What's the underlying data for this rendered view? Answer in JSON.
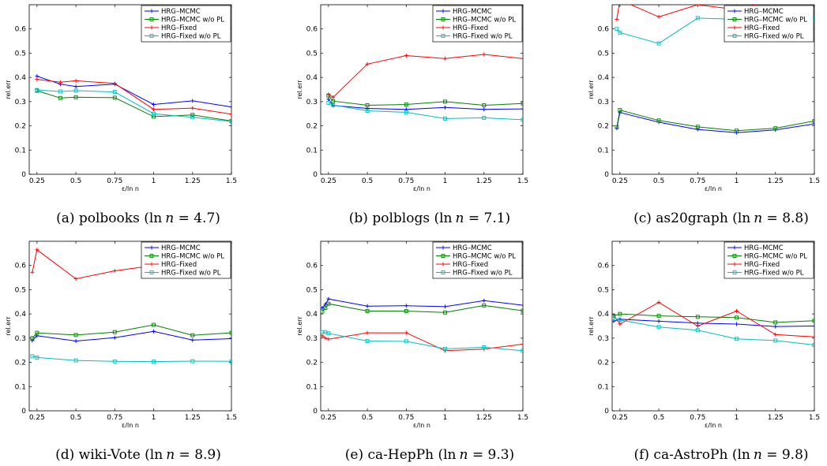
{
  "figure": {
    "legend_labels": [
      "HRG–MCMC",
      "HRG–MCMC w/o PL",
      "HRG–Fixed",
      "HRG–Fixed w/o PL"
    ]
  },
  "chart_data": [
    {
      "type": "line",
      "caption": "(a) polbooks (ln n = 4.7)",
      "caption_parts": {
        "label": "(a) polbooks (",
        "ln": "ln",
        "n": "n",
        "eq": " = 4.7)"
      },
      "xlabel": "ε/ln n",
      "ylabel": "rel.err",
      "xlim": [
        0.2,
        1.5
      ],
      "ylim": [
        0,
        0.7
      ],
      "xticks": [
        "0.25",
        "0.5",
        "0.75",
        "1",
        "1.25",
        "1.5"
      ],
      "yticks": [
        "0",
        "0.1",
        "0.2",
        "0.3",
        "0.4",
        "0.5",
        "0.6"
      ],
      "grid": false,
      "legend_position": "top-right",
      "series": [
        {
          "name": "HRG–MCMC",
          "color": "#0000ff",
          "marker": "plus",
          "x": [
            0.25,
            0.4,
            0.5,
            0.75,
            1.0,
            1.25,
            1.5
          ],
          "y": [
            0.405,
            0.372,
            0.362,
            0.372,
            0.288,
            0.303,
            0.278
          ]
        },
        {
          "name": "HRG–MCMC w/o PL",
          "color": "#008000",
          "marker": "square",
          "x": [
            0.25,
            0.4,
            0.5,
            0.75,
            1.0,
            1.25,
            1.5
          ],
          "y": [
            0.345,
            0.315,
            0.318,
            0.316,
            0.238,
            0.245,
            0.22
          ]
        },
        {
          "name": "HRG–Fixed",
          "color": "#ff0000",
          "marker": "plus",
          "x": [
            0.25,
            0.4,
            0.5,
            0.75,
            1.0,
            1.25,
            1.5
          ],
          "y": [
            0.392,
            0.38,
            0.386,
            0.375,
            0.268,
            0.273,
            0.248
          ]
        },
        {
          "name": "HRG–Fixed w/o PL",
          "color": "#00bfbf",
          "marker": "square",
          "x": [
            0.25,
            0.4,
            0.5,
            0.75,
            1.0,
            1.25,
            1.5
          ],
          "y": [
            0.348,
            0.342,
            0.345,
            0.34,
            0.25,
            0.235,
            0.218
          ]
        }
      ]
    },
    {
      "type": "line",
      "caption": "(b) polblogs (ln n = 7.1)",
      "caption_parts": {
        "label": "(b) polblogs (",
        "ln": "ln",
        "n": "n",
        "eq": " = 7.1)"
      },
      "xlabel": "ε/ln n",
      "ylabel": "rel.err",
      "xlim": [
        0.2,
        1.5
      ],
      "ylim": [
        0,
        0.7
      ],
      "xticks": [
        "0.25",
        "0.5",
        "0.75",
        "1",
        "1.25",
        "1.5"
      ],
      "yticks": [
        "0",
        "0.1",
        "0.2",
        "0.3",
        "0.4",
        "0.5",
        "0.6"
      ],
      "grid": false,
      "legend_position": "top-right",
      "series": [
        {
          "name": "HRG–MCMC",
          "color": "#0000ff",
          "marker": "plus",
          "x": [
            0.25,
            0.28,
            0.5,
            0.75,
            1.0,
            1.25,
            1.5
          ],
          "y": [
            0.31,
            0.284,
            0.272,
            0.268,
            0.276,
            0.268,
            0.27
          ]
        },
        {
          "name": "HRG–MCMC w/o PL",
          "color": "#008000",
          "marker": "square",
          "x": [
            0.25,
            0.28,
            0.5,
            0.75,
            1.0,
            1.25,
            1.5
          ],
          "y": [
            0.325,
            0.302,
            0.285,
            0.288,
            0.3,
            0.285,
            0.292
          ]
        },
        {
          "name": "HRG–Fixed",
          "color": "#ff0000",
          "marker": "plus",
          "x": [
            0.25,
            0.28,
            0.5,
            0.75,
            1.0,
            1.25,
            1.5
          ],
          "y": [
            0.33,
            0.318,
            0.455,
            0.49,
            0.478,
            0.495,
            0.478
          ]
        },
        {
          "name": "HRG–Fixed w/o PL",
          "color": "#00bfbf",
          "marker": "square",
          "x": [
            0.25,
            0.28,
            0.5,
            0.75,
            1.0,
            1.25,
            1.5
          ],
          "y": [
            0.295,
            0.286,
            0.262,
            0.256,
            0.23,
            0.233,
            0.225
          ]
        }
      ]
    },
    {
      "type": "line",
      "caption": "(c) as20graph (ln n = 8.8)",
      "caption_parts": {
        "label": "(c) as20graph (",
        "ln": "ln",
        "n": "n",
        "eq": " = 8.8)"
      },
      "xlabel": "ε/ln n",
      "ylabel": "rel.err",
      "xlim": [
        0.2,
        1.5
      ],
      "ylim": [
        0,
        0.7
      ],
      "xticks": [
        "0.25",
        "0.5",
        "0.75",
        "1",
        "1.25",
        "1.5"
      ],
      "yticks": [
        "0",
        "0.1",
        "0.2",
        "0.3",
        "0.4",
        "0.5",
        "0.6"
      ],
      "grid": false,
      "legend_position": "top-right",
      "series": [
        {
          "name": "HRG–MCMC",
          "color": "#0000ff",
          "marker": "plus",
          "x": [
            0.23,
            0.25,
            0.5,
            0.75,
            1.0,
            1.25,
            1.5
          ],
          "y": [
            0.19,
            0.255,
            0.215,
            0.185,
            0.172,
            0.183,
            0.208
          ]
        },
        {
          "name": "HRG–MCMC w/o PL",
          "color": "#008000",
          "marker": "square",
          "x": [
            0.23,
            0.25,
            0.5,
            0.75,
            1.0,
            1.25,
            1.5
          ],
          "y": [
            0.195,
            0.265,
            0.222,
            0.196,
            0.18,
            0.19,
            0.22
          ]
        },
        {
          "name": "HRG–Fixed",
          "color": "#ff0000",
          "marker": "plus",
          "x": [
            0.23,
            0.25,
            0.5,
            0.75,
            1.0,
            1.25,
            1.5
          ],
          "y": [
            0.64,
            0.72,
            0.65,
            0.7,
            0.68,
            0.72,
            0.72
          ]
        },
        {
          "name": "HRG–Fixed w/o PL",
          "color": "#00bfbf",
          "marker": "square",
          "x": [
            0.23,
            0.25,
            0.5,
            0.75,
            1.0,
            1.25,
            1.5
          ],
          "y": [
            0.6,
            0.585,
            0.54,
            0.645,
            0.64,
            0.64,
            0.64
          ]
        }
      ]
    },
    {
      "type": "line",
      "caption": "(d) wiki-Vote (ln n = 8.9)",
      "caption_parts": {
        "label": "(d) wiki-Vote (",
        "ln": "ln",
        "n": "n",
        "eq": " = 8.9)"
      },
      "xlabel": "ε/ln n",
      "ylabel": "rel.err",
      "xlim": [
        0.2,
        1.5
      ],
      "ylim": [
        0,
        0.7
      ],
      "xticks": [
        "0.25",
        "0.5",
        "0.75",
        "1",
        "1.25",
        "1.5"
      ],
      "yticks": [
        "0",
        "0.1",
        "0.2",
        "0.3",
        "0.4",
        "0.5",
        "0.6"
      ],
      "grid": false,
      "legend_position": "top-right",
      "series": [
        {
          "name": "HRG–MCMC",
          "color": "#0000ff",
          "marker": "plus",
          "x": [
            0.22,
            0.25,
            0.5,
            0.75,
            1.0,
            1.25,
            1.5
          ],
          "y": [
            0.29,
            0.31,
            0.288,
            0.302,
            0.328,
            0.292,
            0.298
          ]
        },
        {
          "name": "HRG–MCMC w/o PL",
          "color": "#008000",
          "marker": "square",
          "x": [
            0.22,
            0.25,
            0.5,
            0.75,
            1.0,
            1.25,
            1.5
          ],
          "y": [
            0.3,
            0.322,
            0.313,
            0.325,
            0.355,
            0.312,
            0.322
          ]
        },
        {
          "name": "HRG–Fixed",
          "color": "#ff0000",
          "marker": "plus",
          "x": [
            0.22,
            0.25,
            0.5,
            0.75,
            1.0
          ],
          "y": [
            0.572,
            0.665,
            0.545,
            0.578,
            0.6
          ]
        },
        {
          "name": "HRG–Fixed w/o PL",
          "color": "#00bfbf",
          "marker": "square",
          "x": [
            0.22,
            0.25,
            0.5,
            0.75,
            1.0,
            1.25,
            1.5
          ],
          "y": [
            0.225,
            0.22,
            0.208,
            0.204,
            0.203,
            0.205,
            0.204
          ]
        }
      ]
    },
    {
      "type": "line",
      "caption": "(e) ca-HepPh (ln n = 9.3)",
      "caption_parts": {
        "label": "(e) ca-HepPh (",
        "ln": "ln",
        "n": "n",
        "eq": " = 9.3)"
      },
      "xlabel": "ε/ln n",
      "ylabel": "rel.err",
      "xlim": [
        0.2,
        1.5
      ],
      "ylim": [
        0,
        0.7
      ],
      "xticks": [
        "0.25",
        "0.5",
        "0.75",
        "1",
        "1.25",
        "1.5"
      ],
      "yticks": [
        "0",
        "0.1",
        "0.2",
        "0.3",
        "0.4",
        "0.5",
        "0.6"
      ],
      "grid": false,
      "legend_position": "top-right",
      "series": [
        {
          "name": "HRG–MCMC",
          "color": "#0000ff",
          "marker": "plus",
          "x": [
            0.21,
            0.23,
            0.25,
            0.5,
            0.75,
            1.0,
            1.25,
            1.5
          ],
          "y": [
            0.425,
            0.44,
            0.462,
            0.432,
            0.434,
            0.43,
            0.455,
            0.436
          ]
        },
        {
          "name": "HRG–MCMC w/o PL",
          "color": "#008000",
          "marker": "square",
          "x": [
            0.21,
            0.23,
            0.25,
            0.5,
            0.75,
            1.0,
            1.25,
            1.5
          ],
          "y": [
            0.41,
            0.425,
            0.442,
            0.412,
            0.412,
            0.406,
            0.435,
            0.413
          ]
        },
        {
          "name": "HRG–Fixed",
          "color": "#ff0000",
          "marker": "plus",
          "x": [
            0.21,
            0.23,
            0.25,
            0.5,
            0.75,
            1.0,
            1.25,
            1.5
          ],
          "y": [
            0.31,
            0.3,
            0.296,
            0.322,
            0.322,
            0.248,
            0.255,
            0.275
          ]
        },
        {
          "name": "HRG–Fixed w/o PL",
          "color": "#00bfbf",
          "marker": "square",
          "x": [
            0.21,
            0.23,
            0.25,
            0.5,
            0.75,
            1.0,
            1.25,
            1.5
          ],
          "y": [
            0.325,
            0.325,
            0.32,
            0.288,
            0.287,
            0.256,
            0.262,
            0.248
          ]
        }
      ]
    },
    {
      "type": "line",
      "caption": "(f) ca-AstroPh (ln n = 9.8)",
      "caption_parts": {
        "label": "(f) ca-AstroPh (",
        "ln": "ln",
        "n": "n",
        "eq": " = 9.8)"
      },
      "xlabel": "ε/ln n",
      "ylabel": "rel.err",
      "xlim": [
        0.2,
        1.5
      ],
      "ylim": [
        0,
        0.7
      ],
      "xticks": [
        "0.25",
        "0.5",
        "0.75",
        "1",
        "1.25",
        "1.5"
      ],
      "yticks": [
        "0",
        "0.1",
        "0.2",
        "0.3",
        "0.4",
        "0.5",
        "0.6"
      ],
      "grid": false,
      "legend_position": "top-right",
      "series": [
        {
          "name": "HRG–MCMC",
          "color": "#0000ff",
          "marker": "plus",
          "x": [
            0.21,
            0.25,
            0.5,
            0.75,
            1.0,
            1.25,
            1.5
          ],
          "y": [
            0.37,
            0.378,
            0.37,
            0.362,
            0.358,
            0.348,
            0.35
          ]
        },
        {
          "name": "HRG–MCMC w/o PL",
          "color": "#008000",
          "marker": "square",
          "x": [
            0.21,
            0.25,
            0.5,
            0.75,
            1.0,
            1.25,
            1.5
          ],
          "y": [
            0.392,
            0.4,
            0.392,
            0.388,
            0.385,
            0.365,
            0.372
          ]
        },
        {
          "name": "HRG–Fixed",
          "color": "#ff0000",
          "marker": "plus",
          "x": [
            0.21,
            0.25,
            0.5,
            0.75,
            1.0,
            1.25,
            1.5
          ],
          "y": [
            0.395,
            0.358,
            0.448,
            0.35,
            0.412,
            0.315,
            0.305
          ]
        },
        {
          "name": "HRG–Fixed w/o PL",
          "color": "#00bfbf",
          "marker": "square",
          "x": [
            0.21,
            0.25,
            0.5,
            0.75,
            1.0,
            1.25,
            1.5
          ],
          "y": [
            0.385,
            0.375,
            0.346,
            0.333,
            0.297,
            0.29,
            0.272
          ]
        }
      ]
    }
  ]
}
